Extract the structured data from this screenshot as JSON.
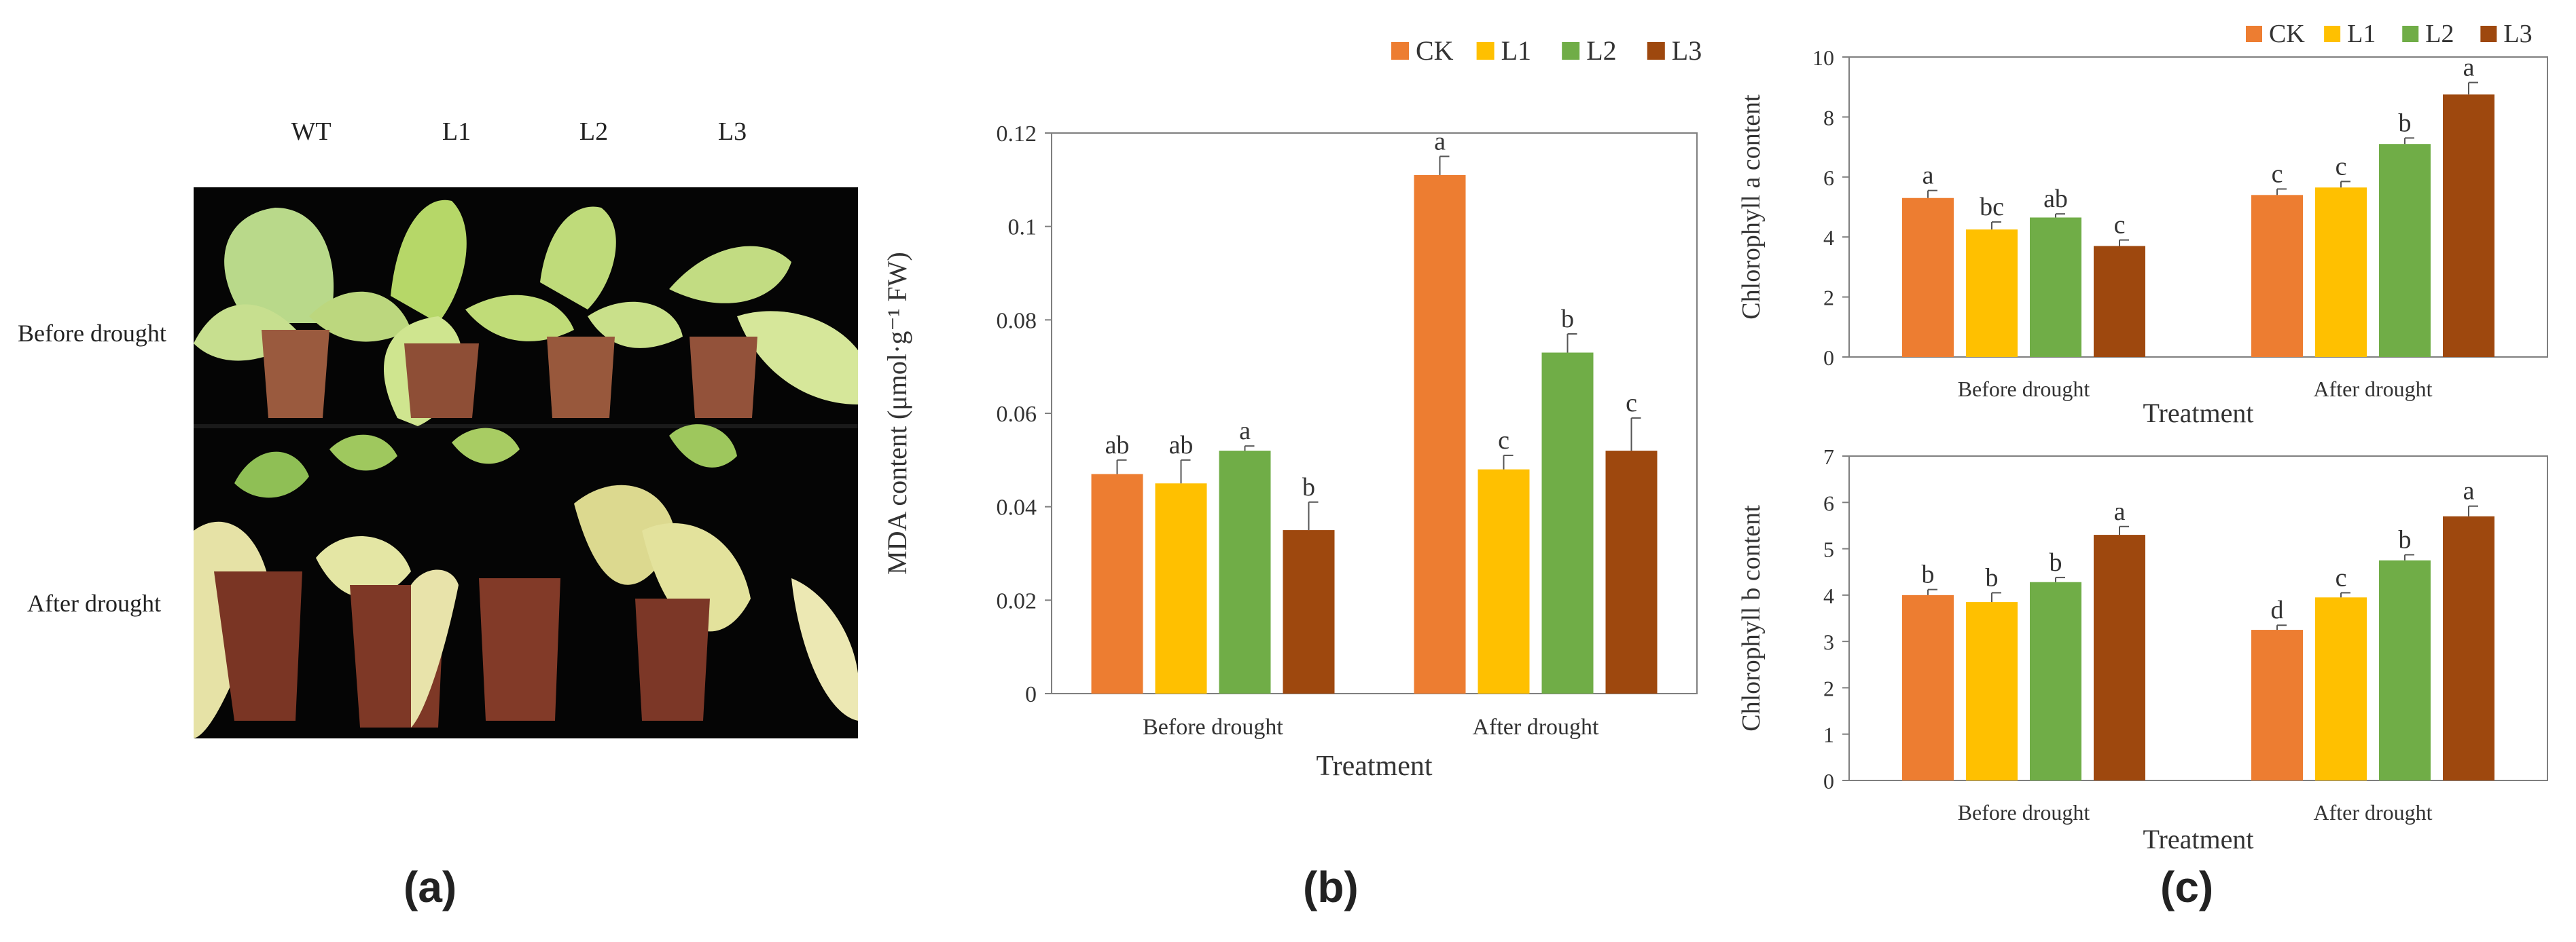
{
  "panels": {
    "a": {
      "label": "(a)",
      "columns": [
        "WT",
        "L1",
        "L2",
        "L3"
      ],
      "rows": [
        "Before drought",
        "After drought"
      ]
    },
    "b": {
      "label": "(b)"
    },
    "c": {
      "label": "(c)"
    }
  },
  "legend": {
    "entries": [
      {
        "name": "CK",
        "color": "#ED7D31"
      },
      {
        "name": "L1",
        "color": "#FFC000"
      },
      {
        "name": "L2",
        "color": "#70AD47"
      },
      {
        "name": "L3",
        "color": "#9E480E"
      }
    ]
  },
  "chart_data": [
    {
      "id": "mda",
      "type": "bar",
      "categories": [
        "Before drought",
        "After drought"
      ],
      "xlabel": "Treatment",
      "ylabel": "MDA content (μmol·g⁻¹ FW)",
      "ylim": [
        0,
        0.12
      ],
      "yticks": [
        0,
        0.02,
        0.04,
        0.06,
        0.08,
        0.1,
        0.12
      ],
      "ytick_labels": [
        "0",
        "0.02",
        "0.04",
        "0.06",
        "0.08",
        "0.1",
        "0.12"
      ],
      "legend_position": "top-right",
      "series": [
        {
          "name": "CK",
          "values": [
            0.047,
            0.111
          ],
          "errors": [
            0.003,
            0.004
          ],
          "labels": [
            "ab",
            "a"
          ]
        },
        {
          "name": "L1",
          "values": [
            0.045,
            0.048
          ],
          "errors": [
            0.005,
            0.003
          ],
          "labels": [
            "ab",
            "c"
          ]
        },
        {
          "name": "L2",
          "values": [
            0.052,
            0.073
          ],
          "errors": [
            0.001,
            0.004
          ],
          "labels": [
            "a",
            "b"
          ]
        },
        {
          "name": "L3",
          "values": [
            0.035,
            0.052
          ],
          "errors": [
            0.006,
            0.007
          ],
          "labels": [
            "b",
            "c"
          ]
        }
      ]
    },
    {
      "id": "chla",
      "type": "bar",
      "categories": [
        "Before drought",
        "After drought"
      ],
      "xlabel": "Treatment",
      "ylabel": "Chlorophyll a content",
      "ylim": [
        0,
        10
      ],
      "yticks": [
        0,
        2,
        4,
        6,
        8,
        10
      ],
      "ytick_labels": [
        "0",
        "2",
        "4",
        "6",
        "8",
        "10"
      ],
      "legend_position": "top-right",
      "series": [
        {
          "name": "CK",
          "values": [
            5.3,
            5.4
          ],
          "errors": [
            0.25,
            0.2
          ],
          "labels": [
            "a",
            "c"
          ]
        },
        {
          "name": "L1",
          "values": [
            4.25,
            5.65
          ],
          "errors": [
            0.25,
            0.2
          ],
          "labels": [
            "bc",
            "c"
          ]
        },
        {
          "name": "L2",
          "values": [
            4.65,
            7.1
          ],
          "errors": [
            0.12,
            0.2
          ],
          "labels": [
            "ab",
            "b"
          ]
        },
        {
          "name": "L3",
          "values": [
            3.7,
            8.75
          ],
          "errors": [
            0.2,
            0.4
          ],
          "labels": [
            "c",
            "a"
          ]
        }
      ]
    },
    {
      "id": "chlb",
      "type": "bar",
      "categories": [
        "Before drought",
        "After drought"
      ],
      "xlabel": "Treatment",
      "ylabel": "Chlorophyll b content",
      "ylim": [
        0,
        7
      ],
      "yticks": [
        0,
        1,
        2,
        3,
        4,
        5,
        6,
        7
      ],
      "ytick_labels": [
        "0",
        "1",
        "2",
        "3",
        "4",
        "5",
        "6",
        "7"
      ],
      "series": [
        {
          "name": "CK",
          "values": [
            4.0,
            3.25
          ],
          "errors": [
            0.12,
            0.1
          ],
          "labels": [
            "b",
            "d"
          ]
        },
        {
          "name": "L1",
          "values": [
            3.85,
            3.95
          ],
          "errors": [
            0.2,
            0.1
          ],
          "labels": [
            "b",
            "c"
          ]
        },
        {
          "name": "L2",
          "values": [
            4.28,
            4.75
          ],
          "errors": [
            0.1,
            0.12
          ],
          "labels": [
            "b",
            "b"
          ]
        },
        {
          "name": "L3",
          "values": [
            5.3,
            5.7
          ],
          "errors": [
            0.18,
            0.22
          ],
          "labels": [
            "a",
            "a"
          ]
        }
      ]
    }
  ]
}
